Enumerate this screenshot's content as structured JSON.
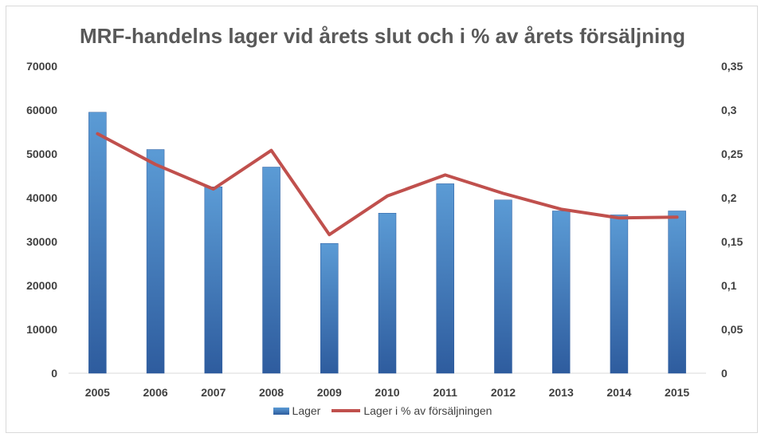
{
  "chart_data": {
    "type": "bar",
    "title": "MRF-handelns lager vid årets slut och i % av årets försäljning",
    "categories": [
      "2005",
      "2006",
      "2007",
      "2008",
      "2009",
      "2010",
      "2011",
      "2012",
      "2013",
      "2014",
      "2015"
    ],
    "series": [
      {
        "name": "Lager",
        "type": "bar",
        "axis": "left",
        "values": [
          59500,
          51000,
          42500,
          47000,
          29600,
          36500,
          43200,
          39500,
          37000,
          36100,
          37000
        ]
      },
      {
        "name": "Lager i % av försäljningen",
        "type": "line",
        "axis": "right",
        "values": [
          0.273,
          0.238,
          0.21,
          0.254,
          0.158,
          0.202,
          0.226,
          0.205,
          0.187,
          0.177,
          0.178
        ]
      }
    ],
    "y_left": {
      "min": 0,
      "max": 70000,
      "ticks": [
        "0",
        "10000",
        "20000",
        "30000",
        "40000",
        "50000",
        "60000",
        "70000"
      ]
    },
    "y_right": {
      "min": 0,
      "max": 0.35,
      "ticks": [
        "0",
        "0,05",
        "0,1",
        "0,15",
        "0,2",
        "0,25",
        "0,3",
        "0,35"
      ]
    },
    "grid": false,
    "legend_position": "bottom",
    "colors": {
      "bar_top": "#5b9bd5",
      "bar_bottom": "#2e5c9e",
      "line": "#c0504d",
      "axis": "#d9d9d9"
    }
  }
}
